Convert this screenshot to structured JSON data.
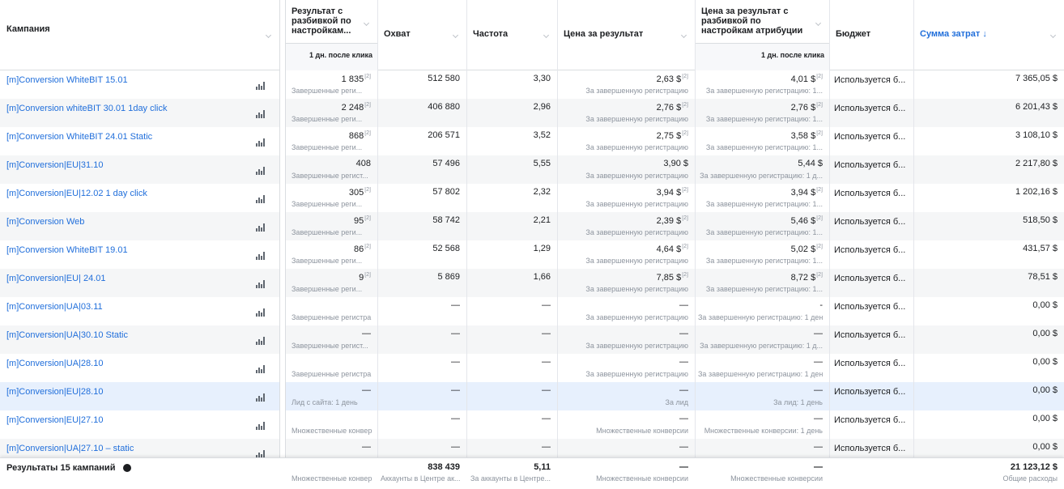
{
  "header": {
    "columns": [
      {
        "label": "Кампания"
      },
      {
        "label": "Результат с разбивкой по настройкам...",
        "sub": "1 дн. после клика"
      },
      {
        "label": "Охват"
      },
      {
        "label": "Частота"
      },
      {
        "label": "Цена за результат"
      },
      {
        "label": "Цена за результат с разбивкой по настройкам атрибуции",
        "sub": "1 дн. после клика"
      },
      {
        "label": "Бюджет"
      },
      {
        "label": "Сумма затрат ↓"
      }
    ]
  },
  "rows": [
    {
      "name": "[m]Conversion WhiteBIT 15.01",
      "result": "1 835",
      "result_note": "[2]",
      "result_sub": "Завершенные реги...",
      "reach": "512 580",
      "freq": "3,30",
      "price": "2,63 $",
      "price_note": "[2]",
      "price_sub": "За завершенную регистрацию",
      "price2": "4,01 $",
      "price2_note": "[2]",
      "price2_sub": "За завершенную регистрацию: 1...",
      "budget": "Используется б...",
      "spend": "7 365,05 $"
    },
    {
      "name": "[m]Conversion whiteBIT 30.01 1day click",
      "result": "2 248",
      "result_note": "[2]",
      "result_sub": "Завершенные реги...",
      "reach": "406 880",
      "freq": "2,96",
      "price": "2,76 $",
      "price_note": "[2]",
      "price_sub": "За завершенную регистрацию",
      "price2": "2,76 $",
      "price2_note": "[2]",
      "price2_sub": "За завершенную регистрацию: 1...",
      "budget": "Используется б...",
      "spend": "6 201,43 $"
    },
    {
      "name": "[m]Conversion WhiteBIT 24.01 Static",
      "result": "868",
      "result_note": "[2]",
      "result_sub": "Завершенные реги...",
      "reach": "206 571",
      "freq": "3,52",
      "price": "2,75 $",
      "price_note": "[2]",
      "price_sub": "За завершенную регистрацию",
      "price2": "3,58 $",
      "price2_note": "[2]",
      "price2_sub": "За завершенную регистрацию: 1...",
      "budget": "Используется б...",
      "spend": "3 108,10 $"
    },
    {
      "name": "[m]Conversion|EU|31.10",
      "result": "408",
      "result_sub": "Завершенные регист...",
      "reach": "57 496",
      "freq": "5,55",
      "price": "3,90 $",
      "price_sub": "За завершенную регистрацию",
      "price2": "5,44 $",
      "price2_sub": "За завершенную регистрацию: 1 д...",
      "budget": "Используется б...",
      "spend": "2 217,80 $"
    },
    {
      "name": "[m]Conversion|EU|12.02 1 day click",
      "result": "305",
      "result_note": "[2]",
      "result_sub": "Завершенные реги...",
      "reach": "57 802",
      "freq": "2,32",
      "price": "3,94 $",
      "price_note": "[2]",
      "price_sub": "За завершенную регистрацию",
      "price2": "3,94 $",
      "price2_note": "[2]",
      "price2_sub": "За завершенную регистрацию: 1...",
      "budget": "Используется б...",
      "spend": "1 202,16 $"
    },
    {
      "name": "[m]Conversion Web",
      "result": "95",
      "result_note": "[2]",
      "result_sub": "Завершенные реги...",
      "reach": "58 742",
      "freq": "2,21",
      "price": "2,39 $",
      "price_note": "[2]",
      "price_sub": "За завершенную регистрацию",
      "price2": "5,46 $",
      "price2_note": "[2]",
      "price2_sub": "За завершенную регистрацию: 1...",
      "budget": "Используется б...",
      "spend": "518,50 $"
    },
    {
      "name": "[m]Conversion WhiteBIT 19.01",
      "result": "86",
      "result_note": "[2]",
      "result_sub": "Завершенные реги...",
      "reach": "52 568",
      "freq": "1,29",
      "price": "4,64 $",
      "price_note": "[2]",
      "price_sub": "За завершенную регистрацию",
      "price2": "5,02 $",
      "price2_note": "[2]",
      "price2_sub": "За завершенную регистрацию: 1...",
      "budget": "Используется б...",
      "spend": "431,57 $"
    },
    {
      "name": "[m]Conversion|EU| 24.01",
      "result": "9",
      "result_note": "[2]",
      "result_sub": "Завершенные реги...",
      "reach": "5 869",
      "freq": "1,66",
      "price": "7,85 $",
      "price_note": "[2]",
      "price_sub": "За завершенную регистрацию",
      "price2": "8,72 $",
      "price2_note": "[2]",
      "price2_sub": "За завершенную регистрацию: 1...",
      "budget": "Используется б...",
      "spend": "78,51 $"
    },
    {
      "name": "[m]Conversion|UA|03.11",
      "result_sub": "Завершенные регистра",
      "reach": "—",
      "freq": "—",
      "price": "—",
      "price_sub": "За завершенную регистрацию",
      "price2": "-",
      "price2_sub": "За завершенную регистрацию: 1 ден",
      "budget": "Используется б...",
      "spend": "0,00 $"
    },
    {
      "name": "[m]Conversion|UA|30.10 Static",
      "result": "—",
      "result_sub": "Завершенные регист...",
      "reach": "—",
      "freq": "—",
      "price": "—",
      "price_sub": "За завершенную регистрацию",
      "price2": "—",
      "price2_sub": "За завершенную регистрацию: 1 д...",
      "budget": "Используется б...",
      "spend": "0,00 $"
    },
    {
      "name": "[m]Conversion|UA|28.10",
      "result_sub": "Завершенные регистра",
      "reach": "—",
      "freq": "—",
      "price": "—",
      "price_sub": "За завершенную регистрацию",
      "price2": "—",
      "price2_sub": "За завершенную регистрацию: 1 ден",
      "budget": "Используется б...",
      "spend": "0,00 $"
    },
    {
      "name": "[m]Conversion|EU|28.10",
      "result": "—",
      "result_sub": "Лид с сайта: 1 день",
      "reach": "—",
      "freq": "—",
      "price": "—",
      "price_sub": "За лид",
      "price2": "—",
      "price2_sub": "За лид: 1 день",
      "budget": "Используется б...",
      "spend": "0,00 $"
    },
    {
      "name": "[m]Conversion|EU|27.10",
      "result_sub": "Множественные конвер",
      "reach": "—",
      "freq": "—",
      "price": "—",
      "price_sub": "Множественные конверсии",
      "price2": "—",
      "price2_sub": "Множественные конверсии: 1 день",
      "budget": "Используется б...",
      "spend": "0,00 $"
    },
    {
      "name": "[m]Conversion|UA|27.10 – static",
      "result": "—",
      "reach": "—",
      "freq": "—",
      "price": "—",
      "price2": "—",
      "budget": "Используется б...",
      "spend": "0,00 $"
    }
  ],
  "footer": {
    "name": "Результаты 15 кампаний",
    "result_sub": "Множественные конвер",
    "reach": "838 439",
    "reach_sub": "Аккаунты в Центре ак...",
    "freq": "5,11",
    "freq_sub": "За аккаунты в Центре...",
    "price": "—",
    "price_sub": "Множественные конверсии",
    "price2": "—",
    "price2_sub": "Множественные конверсии",
    "spend": "21 123,12 $",
    "spend_sub": "Общие расходы"
  }
}
